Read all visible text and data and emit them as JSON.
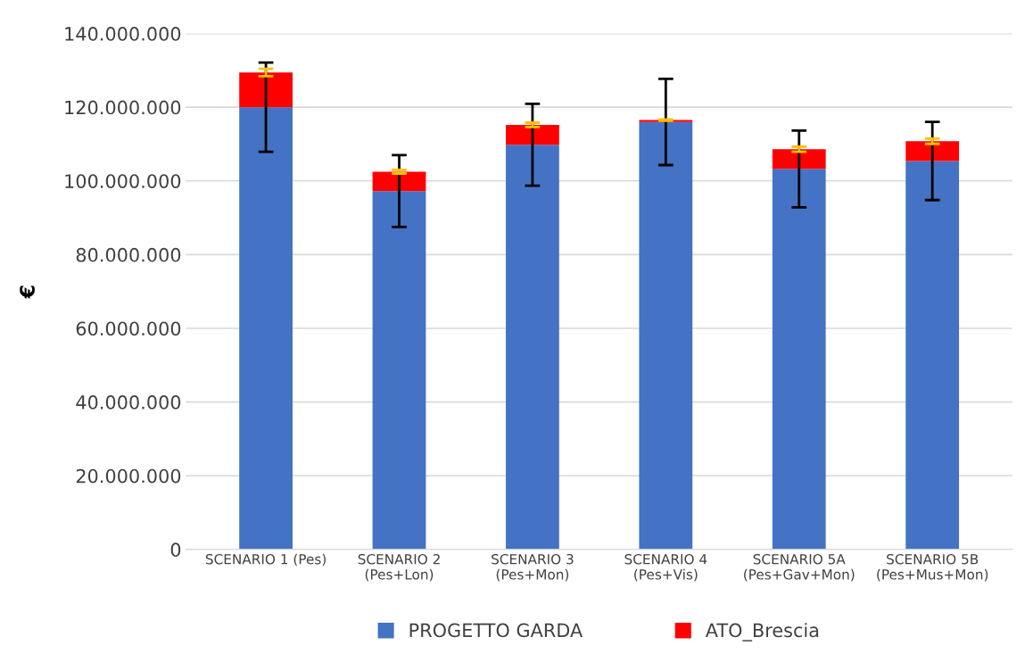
{
  "chart_data": {
    "type": "bar",
    "stacked": true,
    "ylabel": "€",
    "categories": [
      "SCENARIO 1 (Pes)",
      "SCENARIO 2\n(Pes+Lon)",
      "SCENARIO 3\n(Pes+Mon)",
      "SCENARIO 4\n(Pes+Vis)",
      "SCENARIO 5A\n(Pes+Gav+Mon)",
      "SCENARIO 5B\n(Pes+Mus+Mon)"
    ],
    "series": [
      {
        "name": "PROGETTO GARDA",
        "color": "#4472c4",
        "values": [
          120000000,
          97250000,
          109800000,
          116000000,
          103250000,
          105400000
        ],
        "errors": [
          12100000,
          9750000,
          11100000,
          11700000,
          10400000,
          10600000
        ]
      },
      {
        "name": "ATO_Brescia",
        "color": "#ff0000",
        "values": [
          9400000,
          5250000,
          5400000,
          500000,
          5350000,
          5350000
        ],
        "errors": [
          1000000,
          500000,
          600000,
          200000,
          700000,
          700000
        ]
      }
    ],
    "ylim": [
      0,
      140000000
    ],
    "yticks": [
      {
        "value": 0,
        "label": "0"
      },
      {
        "value": 20000000,
        "label": "20.000.000"
      },
      {
        "value": 40000000,
        "label": "40.000.000"
      },
      {
        "value": 60000000,
        "label": "60.000.000"
      },
      {
        "value": 80000000,
        "label": "80.000.000"
      },
      {
        "value": 100000000,
        "label": "100.000.000"
      },
      {
        "value": 120000000,
        "label": "120.000.000"
      },
      {
        "value": 140000000,
        "label": "140.000.000"
      }
    ],
    "grid": "y",
    "legend": "bottom"
  }
}
